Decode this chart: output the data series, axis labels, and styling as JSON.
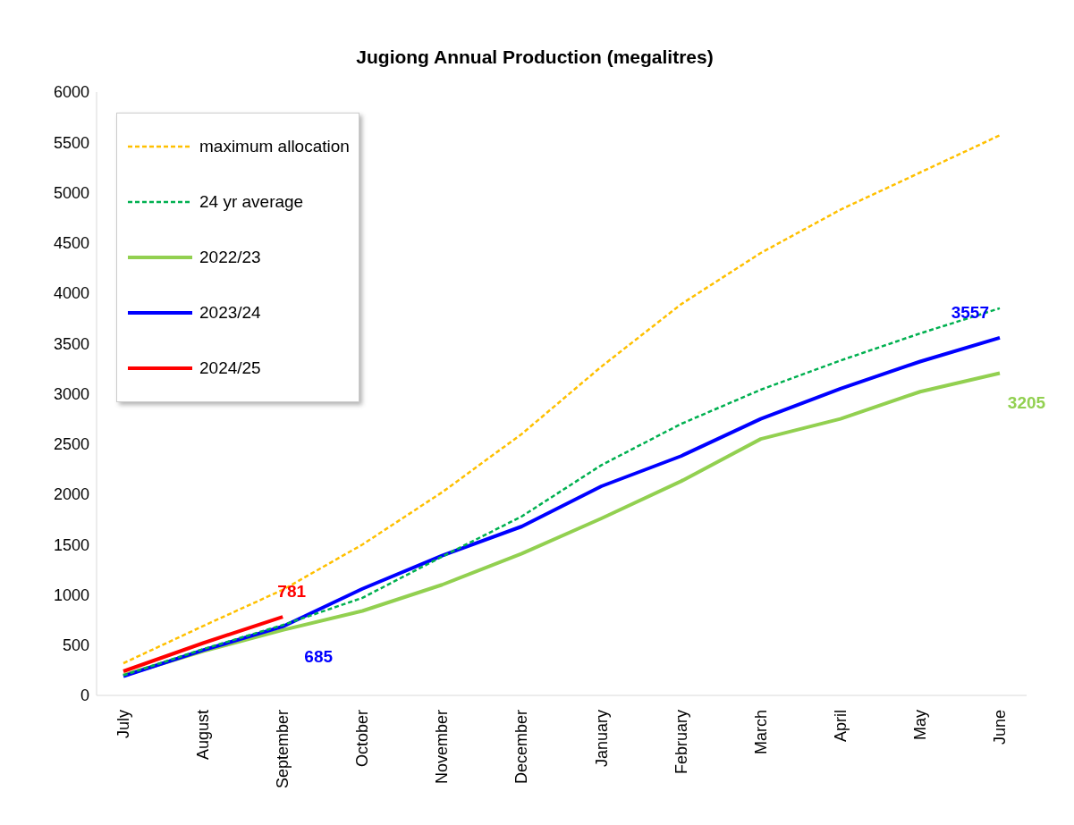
{
  "chart_data": {
    "type": "line",
    "title": "Jugiong Annual Production (megalitres)",
    "categories": [
      "July",
      "August",
      "September",
      "October",
      "November",
      "December",
      "January",
      "February",
      "March",
      "April",
      "May",
      "June"
    ],
    "series": [
      {
        "name": "maximum allocation",
        "color": "#ffc000",
        "line_style": "dashed",
        "values": [
          320,
          690,
          1050,
          1500,
          2020,
          2600,
          3270,
          3890,
          4400,
          4830,
          5200,
          5570
        ]
      },
      {
        "name": "24 yr average",
        "color": "#00b050",
        "line_style": "dashed",
        "values": [
          200,
          460,
          700,
          970,
          1380,
          1780,
          2290,
          2700,
          3040,
          3330,
          3600,
          3850
        ]
      },
      {
        "name": "2022/23",
        "color": "#92d050",
        "values": [
          200,
          440,
          650,
          840,
          1100,
          1410,
          1760,
          2130,
          2550,
          2750,
          3020,
          3205
        ],
        "value_labels": [
          null,
          null,
          null,
          null,
          null,
          null,
          null,
          null,
          null,
          null,
          null,
          "3205"
        ]
      },
      {
        "name": "2023/24",
        "color": "#0000ff",
        "values": [
          190,
          450,
          685,
          1060,
          1390,
          1680,
          2080,
          2380,
          2750,
          3050,
          3320,
          3557
        ],
        "value_labels": [
          null,
          null,
          "685",
          null,
          null,
          null,
          null,
          null,
          null,
          null,
          null,
          "3557"
        ]
      },
      {
        "name": "2024/25",
        "color": "#ff0000",
        "values": [
          240,
          520,
          781,
          null,
          null,
          null,
          null,
          null,
          null,
          null,
          null,
          null
        ],
        "value_labels": [
          null,
          null,
          "781",
          null,
          null,
          null,
          null,
          null,
          null,
          null,
          null,
          null
        ]
      }
    ],
    "ylim": [
      0,
      6000
    ],
    "yticks": [
      0,
      500,
      1000,
      1500,
      2000,
      2500,
      3000,
      3500,
      4000,
      4500,
      5000,
      5500,
      6000
    ],
    "grid": false,
    "legend": "top left",
    "marker": "none",
    "line_style": "solid"
  }
}
